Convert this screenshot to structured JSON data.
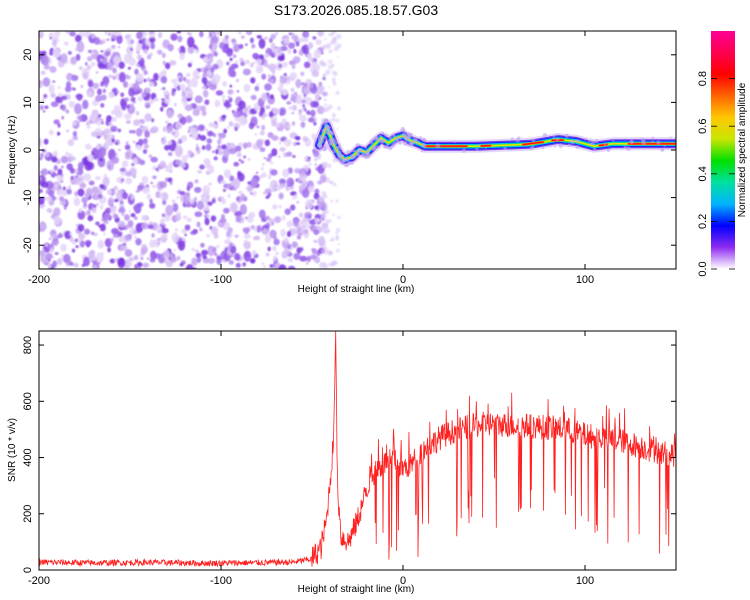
{
  "title": "S173.2026.085.18.57.G03",
  "chart_data": [
    {
      "type": "heatmap",
      "name": "spectrogram",
      "xlabel": "Height of straight line (km)",
      "ylabel": "Frequency (Hz)",
      "xlim": [
        -200,
        150
      ],
      "ylim": [
        -25,
        25
      ],
      "xticks": [
        -200,
        -100,
        0,
        100
      ],
      "yticks": [
        20,
        10,
        0,
        -10,
        -20
      ],
      "noise_region_x": [
        -200,
        -45
      ],
      "signal_track": [
        {
          "x": -46,
          "y": 1
        },
        {
          "x": -44,
          "y": 3
        },
        {
          "x": -42,
          "y": 5
        },
        {
          "x": -40,
          "y": 3
        },
        {
          "x": -38,
          "y": 1
        },
        {
          "x": -35,
          "y": -1
        },
        {
          "x": -32,
          "y": -2
        },
        {
          "x": -28,
          "y": -1.5
        },
        {
          "x": -24,
          "y": 0
        },
        {
          "x": -20,
          "y": -0.5
        },
        {
          "x": -16,
          "y": 1
        },
        {
          "x": -12,
          "y": 2.5
        },
        {
          "x": -8,
          "y": 1.5
        },
        {
          "x": -4,
          "y": 2.5
        },
        {
          "x": 0,
          "y": 3
        },
        {
          "x": 4,
          "y": 2
        },
        {
          "x": 8,
          "y": 1.5
        },
        {
          "x": 12,
          "y": 0.8
        },
        {
          "x": 40,
          "y": 0.8
        },
        {
          "x": 70,
          "y": 1.2
        },
        {
          "x": 85,
          "y": 2.2
        },
        {
          "x": 95,
          "y": 1.8
        },
        {
          "x": 105,
          "y": 0.8
        },
        {
          "x": 115,
          "y": 1.3
        },
        {
          "x": 150,
          "y": 1.3
        }
      ],
      "colorbar": {
        "label": "Normalized spectral amplitude",
        "ticks": [
          "0.0",
          "0.2",
          "0.4",
          "0.6",
          "0.8"
        ],
        "range": [
          0,
          1
        ],
        "colors": [
          "#ffffff",
          "#8e2cf0",
          "#0000ff",
          "#00b4ff",
          "#00e0a0",
          "#00e000",
          "#c8e600",
          "#ffc800",
          "#ff6400",
          "#ff0000",
          "#ff0050",
          "#ff0096"
        ]
      }
    },
    {
      "type": "line",
      "name": "snr",
      "xlabel": "Height of straight line (km)",
      "ylabel": "SNR (10 * v/v)",
      "xlim": [
        -200,
        150
      ],
      "ylim": [
        0,
        850
      ],
      "xticks": [
        -200,
        -100,
        0,
        100
      ],
      "yticks": [
        0,
        200,
        400,
        600,
        800
      ],
      "color": "#ff2020",
      "series": [
        {
          "name": "SNR",
          "points": [
            [
              -200,
              28
            ],
            [
              -170,
              25
            ],
            [
              -140,
              27
            ],
            [
              -110,
              24
            ],
            [
              -80,
              26
            ],
            [
              -60,
              28
            ],
            [
              -50,
              40
            ],
            [
              -45,
              80
            ],
            [
              -42,
              180
            ],
            [
              -40,
              320
            ],
            [
              -38,
              480
            ],
            [
              -37,
              850
            ],
            [
              -36,
              300
            ],
            [
              -34,
              120
            ],
            [
              -30,
              100
            ],
            [
              -26,
              160
            ],
            [
              -22,
              240
            ],
            [
              -18,
              330
            ],
            [
              -14,
              360
            ],
            [
              -10,
              380
            ],
            [
              -5,
              390
            ],
            [
              0,
              360
            ],
            [
              5,
              380
            ],
            [
              10,
              420
            ],
            [
              20,
              470
            ],
            [
              30,
              500
            ],
            [
              45,
              520
            ],
            [
              60,
              515
            ],
            [
              75,
              510
            ],
            [
              90,
              500
            ],
            [
              100,
              480
            ],
            [
              110,
              470
            ],
            [
              120,
              460
            ],
            [
              130,
              440
            ],
            [
              140,
              420
            ],
            [
              150,
              410
            ]
          ]
        }
      ]
    }
  ]
}
